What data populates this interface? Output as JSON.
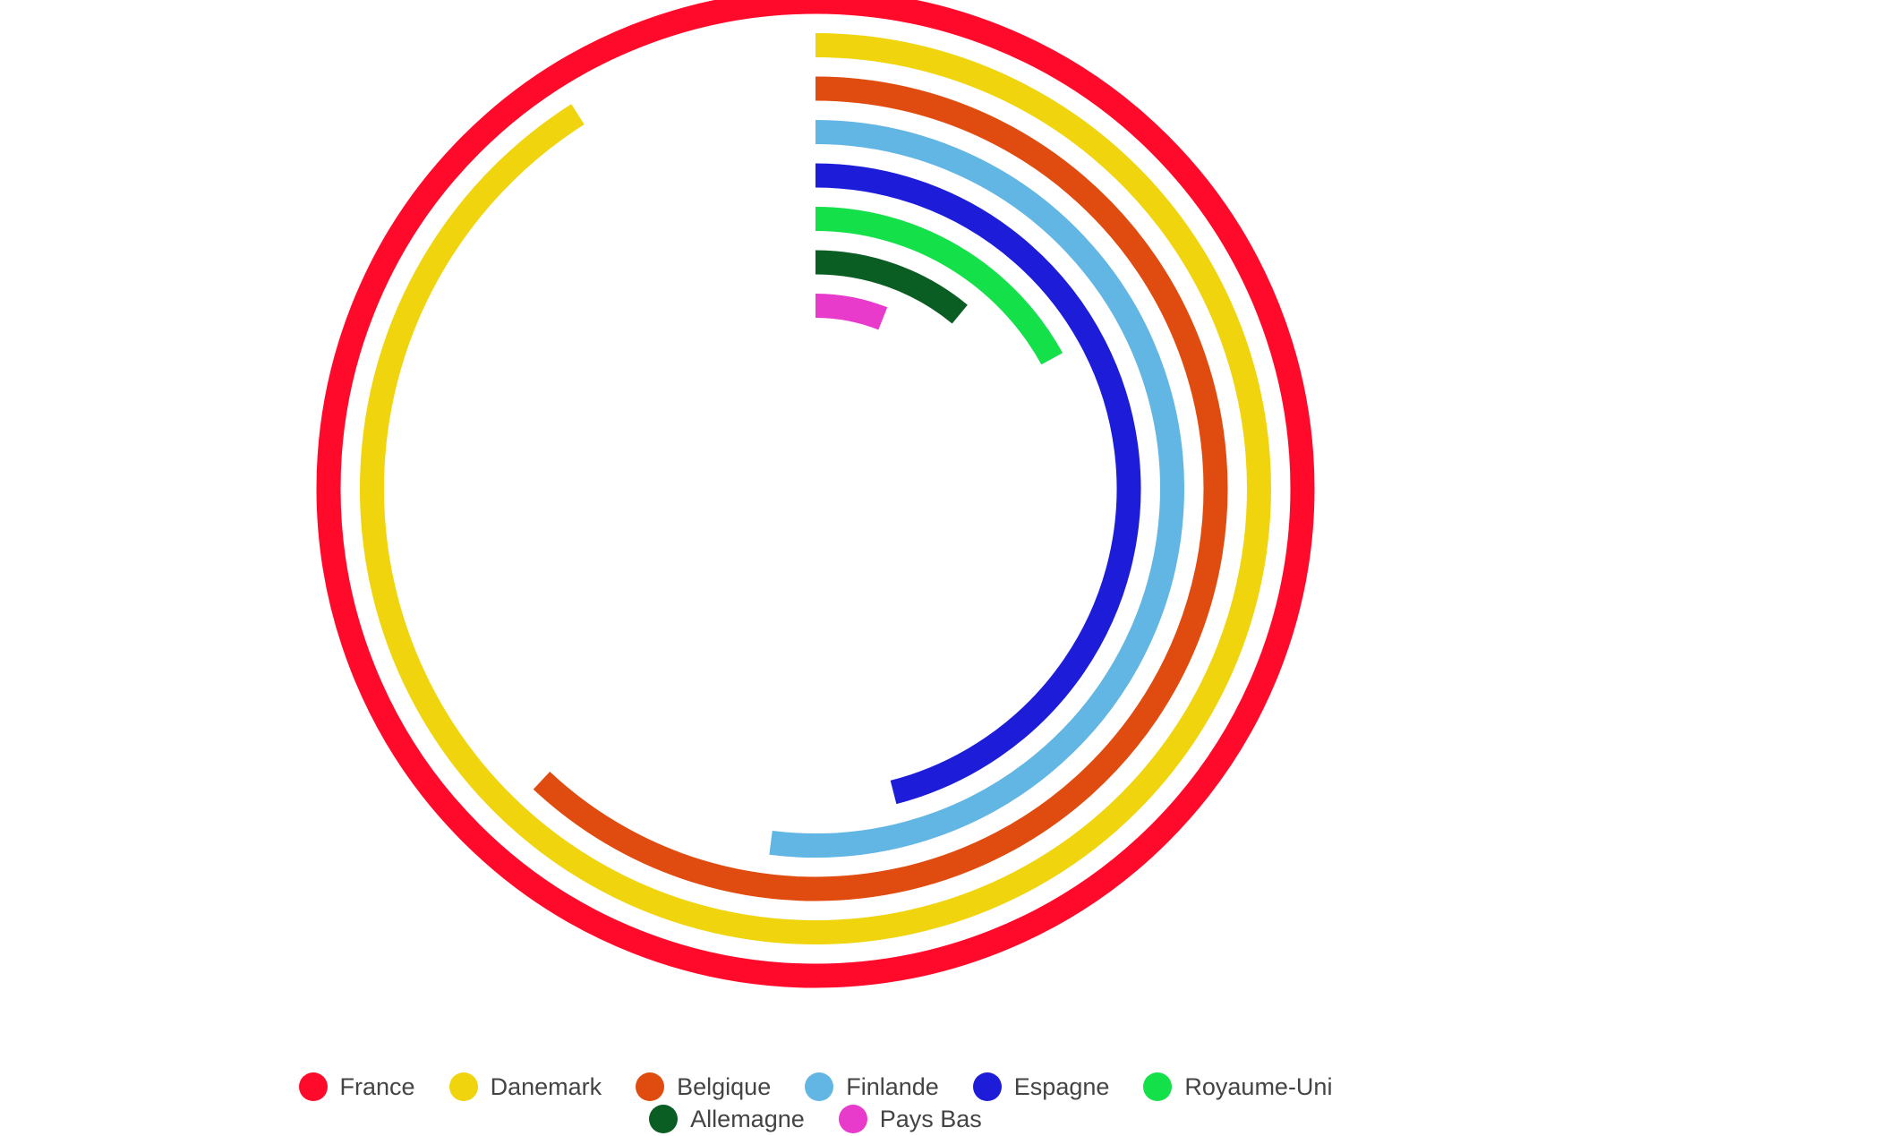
{
  "chart_data": {
    "type": "radial-bar",
    "ylim": [
      0,
      100
    ],
    "series": [
      {
        "name": "France",
        "color": "#ff0a2a",
        "values": [
          100
        ]
      },
      {
        "name": "Danemark",
        "color": "#f0d50e",
        "values": [
          91
        ]
      },
      {
        "name": "Belgique",
        "color": "#e04c10",
        "values": [
          62
        ]
      },
      {
        "name": "Finlande",
        "color": "#62b6e4",
        "values": [
          52
        ]
      },
      {
        "name": "Espagne",
        "color": "#1c1cd9",
        "values": [
          46
        ]
      },
      {
        "name": "Royaume-Uni",
        "color": "#14e04a",
        "values": [
          17
        ]
      },
      {
        "name": "Allemagne",
        "color": "#0a5e24",
        "values": [
          11
        ]
      },
      {
        "name": "Pays Bas",
        "color": "#e83acb",
        "values": [
          6
        ]
      }
    ],
    "legend": "bottom"
  }
}
